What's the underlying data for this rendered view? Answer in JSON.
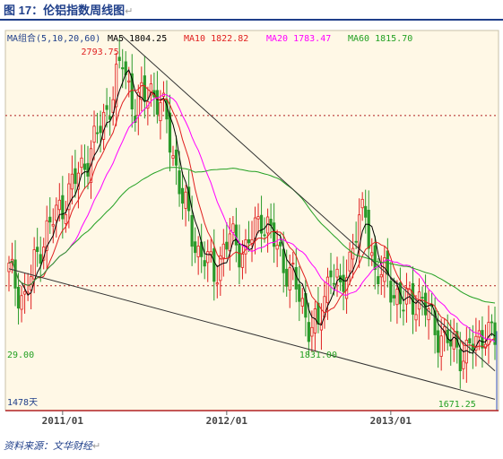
{
  "figure": {
    "title": "图 17：伦铝指数周线图",
    "return_mark": "↵",
    "source": "资料来源：文华财经"
  },
  "colors": {
    "background": "#fff8e6",
    "up_bar": "#e02020",
    "down_bar": "#2a9a2a",
    "ma5": "#000000",
    "ma10": "#e02020",
    "ma20": "#ff00ff",
    "ma60": "#22a022",
    "trendline": "#333333",
    "level_line": "#b02020",
    "title_text": "#1f3f8a"
  },
  "chart_data": {
    "type": "candlestick",
    "legend": {
      "group": "MA组合(5,10,20,60)",
      "items": [
        {
          "name": "MA5",
          "value": "1804.25"
        },
        {
          "name": "MA10",
          "value": "1822.82"
        },
        {
          "name": "MA20",
          "value": "1783.47"
        },
        {
          "name": "MA60",
          "value": "1815.70"
        }
      ]
    },
    "x_ticks": [
      "2011/01",
      "2012/01",
      "2013/01"
    ],
    "annotations": {
      "high": "2793.75",
      "left_low": "29.00",
      "mid_low": "1831.00",
      "right_low": "1671.25",
      "bar_count": "1478天"
    },
    "y_range": [
      1560,
      2900
    ],
    "levels": [
      2600,
      2000
    ],
    "weeks": 155,
    "key_closes": [
      [
        0,
        2050
      ],
      [
        5,
        1950
      ],
      [
        10,
        2150
      ],
      [
        20,
        2350
      ],
      [
        27,
        2500
      ],
      [
        33,
        2680
      ],
      [
        36,
        2793
      ],
      [
        40,
        2620
      ],
      [
        45,
        2700
      ],
      [
        50,
        2580
      ],
      [
        55,
        2300
      ],
      [
        60,
        2120
      ],
      [
        65,
        2050
      ],
      [
        70,
        2170
      ],
      [
        75,
        2120
      ],
      [
        80,
        2250
      ],
      [
        85,
        2130
      ],
      [
        90,
        2020
      ],
      [
        95,
        1870
      ],
      [
        98,
        1840
      ],
      [
        102,
        2080
      ],
      [
        105,
        1960
      ],
      [
        110,
        2200
      ],
      [
        113,
        2250
      ],
      [
        116,
        2050
      ],
      [
        120,
        2020
      ],
      [
        125,
        1930
      ],
      [
        130,
        1960
      ],
      [
        135,
        1850
      ],
      [
        140,
        1790
      ],
      [
        145,
        1760
      ],
      [
        148,
        1800
      ],
      [
        151,
        1850
      ],
      [
        154,
        1804
      ]
    ],
    "trendlines": [
      {
        "from": [
          36,
          2880
        ],
        "to": [
          154,
          1700
        ]
      },
      {
        "from": [
          0,
          2060
        ],
        "to": [
          154,
          1600
        ]
      }
    ]
  }
}
